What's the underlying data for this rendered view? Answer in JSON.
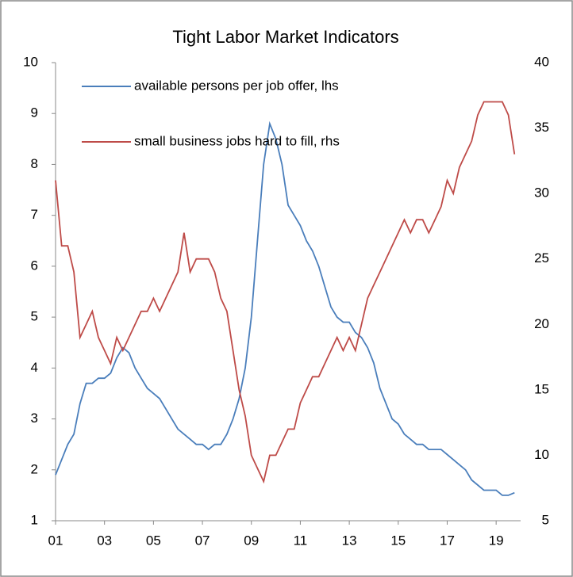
{
  "chart_data": {
    "type": "line",
    "title": "Tight Labor Market Indicators",
    "x": [
      2001,
      2001.25,
      2001.5,
      2001.75,
      2002,
      2002.25,
      2002.5,
      2002.75,
      2003,
      2003.25,
      2003.5,
      2003.75,
      2004,
      2004.25,
      2004.5,
      2004.75,
      2005,
      2005.25,
      2005.5,
      2005.75,
      2006,
      2006.25,
      2006.5,
      2006.75,
      2007,
      2007.25,
      2007.5,
      2007.75,
      2008,
      2008.25,
      2008.5,
      2008.75,
      2009,
      2009.25,
      2009.5,
      2009.75,
      2010,
      2010.25,
      2010.5,
      2010.75,
      2011,
      2011.25,
      2011.5,
      2011.75,
      2012,
      2012.25,
      2012.5,
      2012.75,
      2013,
      2013.25,
      2013.5,
      2013.75,
      2014,
      2014.25,
      2014.5,
      2014.75,
      2015,
      2015.25,
      2015.5,
      2015.75,
      2016,
      2016.25,
      2016.5,
      2016.75,
      2017,
      2017.25,
      2017.5,
      2017.75,
      2018,
      2018.25,
      2018.5,
      2018.75,
      2019,
      2019.25,
      2019.5,
      2019.75
    ],
    "series": [
      {
        "name": "available persons per job offer, lhs",
        "color": "#4a7ebb",
        "axis": "y",
        "values": [
          1.9,
          2.2,
          2.5,
          2.7,
          3.3,
          3.7,
          3.7,
          3.8,
          3.8,
          3.9,
          4.2,
          4.4,
          4.3,
          4.0,
          3.8,
          3.6,
          3.5,
          3.4,
          3.2,
          3.0,
          2.8,
          2.7,
          2.6,
          2.5,
          2.5,
          2.4,
          2.5,
          2.5,
          2.7,
          3.0,
          3.4,
          4.0,
          5.0,
          6.5,
          8.0,
          8.8,
          8.5,
          8.0,
          7.2,
          7.0,
          6.8,
          6.5,
          6.3,
          6.0,
          5.6,
          5.2,
          5.0,
          4.9,
          4.9,
          4.7,
          4.6,
          4.4,
          4.1,
          3.6,
          3.3,
          3.0,
          2.9,
          2.7,
          2.6,
          2.5,
          2.5,
          2.4,
          2.4,
          2.4,
          2.3,
          2.2,
          2.1,
          2.0,
          1.8,
          1.7,
          1.6,
          1.6,
          1.6,
          1.5,
          1.5,
          1.55
        ]
      },
      {
        "name": "small business jobs hard to fill, rhs",
        "color": "#be4b48",
        "axis": "y2",
        "values": [
          31,
          26,
          26,
          24,
          19,
          20,
          21,
          19,
          18,
          17,
          19,
          18,
          19,
          20,
          21,
          21,
          22,
          21,
          22,
          23,
          24,
          27,
          24,
          25,
          25,
          25,
          24,
          22,
          21,
          18,
          15,
          13,
          10,
          9,
          8,
          10,
          10,
          11,
          12,
          12,
          14,
          15,
          16,
          16,
          17,
          18,
          19,
          18,
          19,
          18,
          20,
          22,
          23,
          24,
          25,
          26,
          27,
          28,
          27,
          28,
          28,
          27,
          28,
          29,
          31,
          30,
          32,
          33,
          34,
          36,
          37,
          37,
          37,
          37,
          36,
          33
        ]
      }
    ],
    "xlim": [
      2001,
      2020
    ],
    "xticks": [
      {
        "value": 2001,
        "label": "01"
      },
      {
        "value": 2003,
        "label": "03"
      },
      {
        "value": 2005,
        "label": "05"
      },
      {
        "value": 2007,
        "label": "07"
      },
      {
        "value": 2009,
        "label": "09"
      },
      {
        "value": 2011,
        "label": "11"
      },
      {
        "value": 2013,
        "label": "13"
      },
      {
        "value": 2015,
        "label": "15"
      },
      {
        "value": 2017,
        "label": "17"
      },
      {
        "value": 2019,
        "label": "19"
      }
    ],
    "ylim": [
      1,
      10
    ],
    "yticks": [
      1,
      2,
      3,
      4,
      5,
      6,
      7,
      8,
      9,
      10
    ],
    "y2lim": [
      5,
      40
    ],
    "y2ticks": [
      5,
      10,
      15,
      20,
      25,
      30,
      35,
      40
    ]
  }
}
